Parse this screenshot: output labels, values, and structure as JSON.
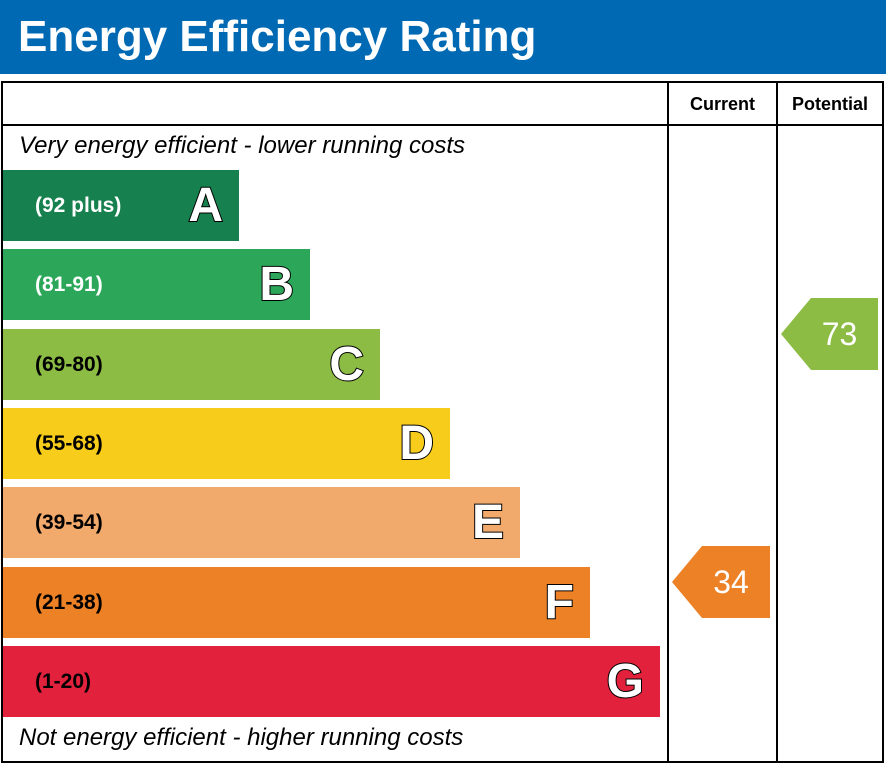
{
  "title": "Energy Efficiency Rating",
  "columns": {
    "current": "Current",
    "potential": "Potential"
  },
  "top_caption": "Very energy efficient - lower running costs",
  "bottom_caption": "Not energy efficient - higher running costs",
  "chart_data": {
    "type": "bar",
    "title": "Energy Efficiency Rating",
    "bands": [
      {
        "letter": "A",
        "range": "(92 plus)",
        "color": "#16804e",
        "text_color": "#ffffff"
      },
      {
        "letter": "B",
        "range": "(81-91)",
        "color": "#2ca75a",
        "text_color": "#ffffff"
      },
      {
        "letter": "C",
        "range": "(69-80)",
        "color": "#8cbc44",
        "text_color": "#000000"
      },
      {
        "letter": "D",
        "range": "(55-68)",
        "color": "#f8cc1a",
        "text_color": "#000000"
      },
      {
        "letter": "E",
        "range": "(39-54)",
        "color": "#f1aa6c",
        "text_color": "#000000"
      },
      {
        "letter": "F",
        "range": "(21-38)",
        "color": "#ec8126",
        "text_color": "#000000"
      },
      {
        "letter": "G",
        "range": "(1-20)",
        "color": "#e2213c",
        "text_color": "#000000"
      }
    ],
    "current": {
      "value": 34,
      "band": "F",
      "color": "#ec8126"
    },
    "potential": {
      "value": 73,
      "band": "C",
      "color": "#8cbc44"
    }
  }
}
